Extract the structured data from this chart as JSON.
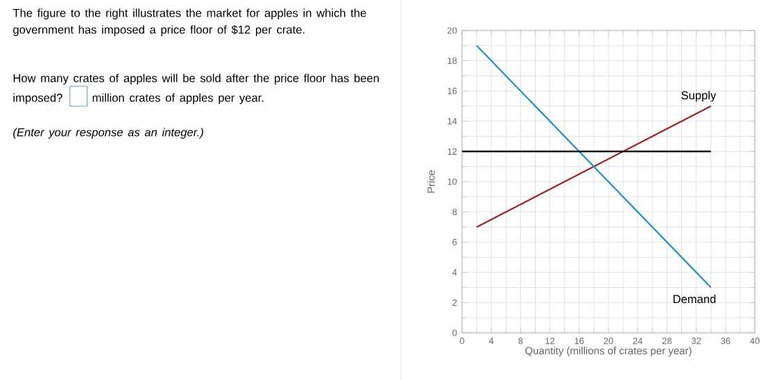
{
  "chart_data": {
    "type": "line",
    "xlabel": "Quantity (millions of crates per year)",
    "ylabel": "Price",
    "xlim": [
      0,
      40
    ],
    "ylim": [
      0,
      20
    ],
    "xticks": [
      0,
      4,
      8,
      12,
      16,
      20,
      24,
      28,
      32,
      36,
      40
    ],
    "yticks": [
      0,
      2,
      4,
      6,
      8,
      10,
      12,
      14,
      16,
      18,
      20
    ],
    "grid": true,
    "legend": false,
    "marker": "none",
    "line_style": "solid",
    "series": [
      {
        "name": "Supply",
        "color": "#a31f1f",
        "x": [
          2,
          34
        ],
        "values": [
          7,
          15
        ]
      },
      {
        "name": "Demand",
        "color": "#1b8fd2",
        "x": [
          2,
          34
        ],
        "values": [
          19,
          3
        ]
      },
      {
        "color": "#000000",
        "x": [
          0,
          34
        ],
        "values": [
          12,
          12
        ]
      }
    ],
    "annotations": [
      "The figure to the right illustrates the market for apples in which the government has imposed a price floor of $12 per crate.",
      "How many crates of apples will be sold after the price floor has been imposed?",
      "million crates of apples per year.",
      "(Enter your response as an integer.)"
    ]
  }
}
